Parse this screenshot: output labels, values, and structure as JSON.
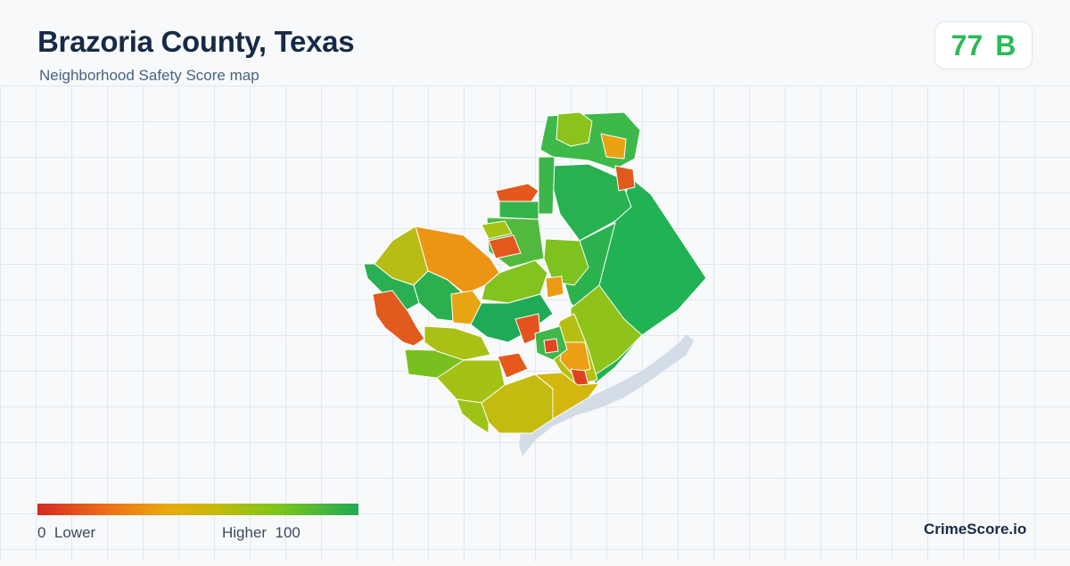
{
  "header": {
    "title": "Brazoria County, Texas",
    "subtitle": "Neighborhood Safety Score map"
  },
  "score": {
    "value": "77",
    "grade": "B",
    "color": "#2cb957"
  },
  "legend": {
    "low_label": "0  Lower",
    "high_label": "Higher  100",
    "colors": [
      "#d42a22",
      "#ec6a1b",
      "#e9a90e",
      "#c7b90b",
      "#7dc51a",
      "#1faa55"
    ]
  },
  "brand": "CrimeScore.io",
  "map": {
    "water_color": "#d3dde8"
  }
}
